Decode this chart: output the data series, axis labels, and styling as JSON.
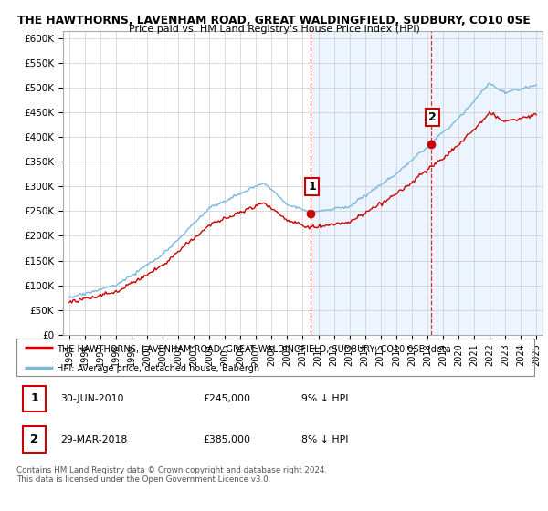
{
  "title1": "THE HAWTHORNS, LAVENHAM ROAD, GREAT WALDINGFIELD, SUDBURY, CO10 0SE",
  "title2": "Price paid vs. HM Land Registry's House Price Index (HPI)",
  "ylabel_ticks": [
    "£0",
    "£50K",
    "£100K",
    "£150K",
    "£200K",
    "£250K",
    "£300K",
    "£350K",
    "£400K",
    "£450K",
    "£500K",
    "£550K",
    "£600K"
  ],
  "ytick_values": [
    0,
    50000,
    100000,
    150000,
    200000,
    250000,
    300000,
    350000,
    400000,
    450000,
    500000,
    550000,
    600000
  ],
  "ylim": [
    0,
    615000
  ],
  "xlim_start": 1994.6,
  "xlim_end": 2025.4,
  "hpi_color": "#7bb8e0",
  "price_color": "#cc0000",
  "purchase1_date": 2010.5,
  "purchase1_price": 245000,
  "purchase2_date": 2018.25,
  "purchase2_price": 385000,
  "legend_line1": "THE HAWTHORNS, LAVENHAM ROAD, GREAT WALDINGFIELD, SUDBURY, CO10 0SE (deta",
  "legend_line2": "HPI: Average price, detached house, Babergh",
  "table_row1": [
    "1",
    "30-JUN-2010",
    "£245,000",
    "9% ↓ HPI"
  ],
  "table_row2": [
    "2",
    "29-MAR-2018",
    "£385,000",
    "8% ↓ HPI"
  ],
  "footer": "Contains HM Land Registry data © Crown copyright and database right 2024.\nThis data is licensed under the Open Government Licence v3.0.",
  "bg_highlight_start": 2010.5,
  "bg_highlight_end": 2025.4
}
